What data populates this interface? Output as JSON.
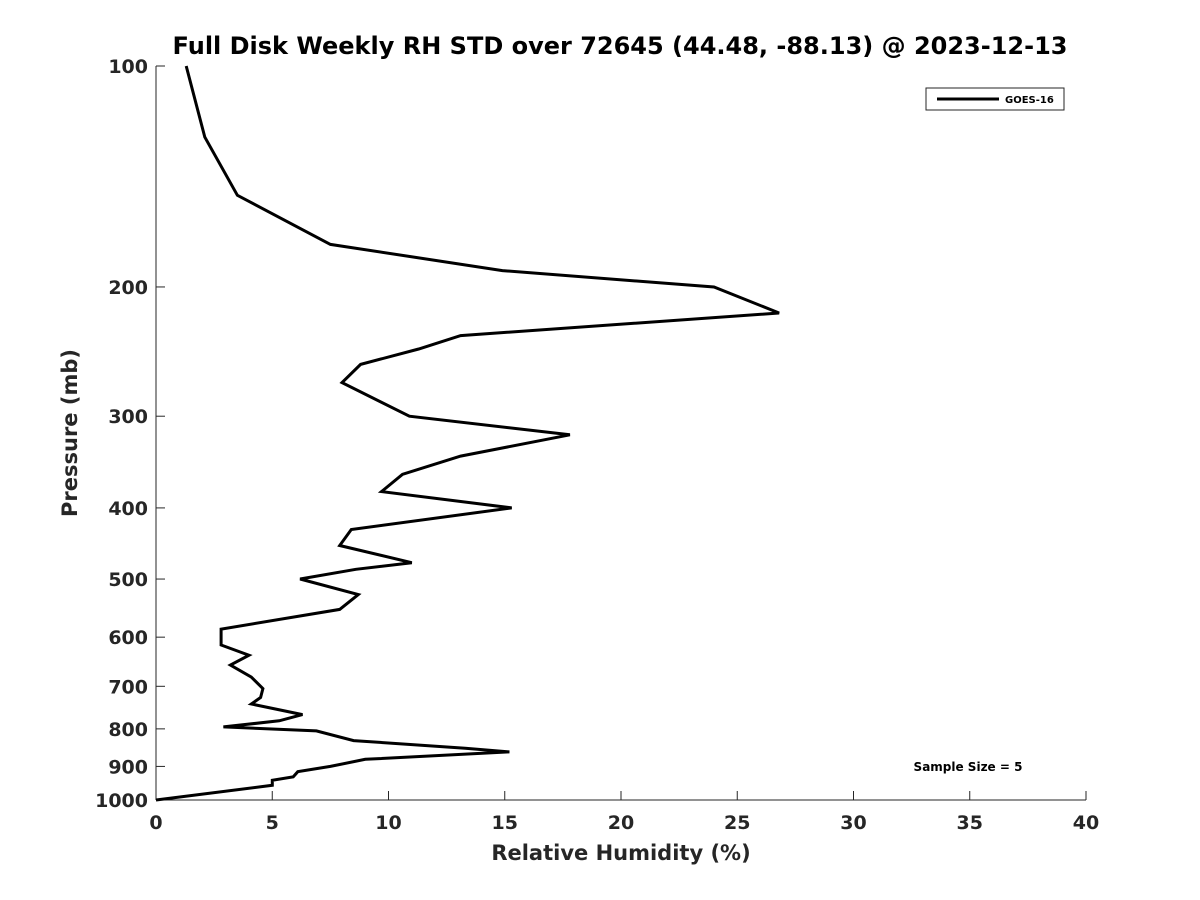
{
  "chart_data": {
    "type": "line",
    "title": "Full Disk Weekly RH STD over 72645 (44.48, -88.13) @ 2023-12-13",
    "xlabel": "Relative Humidity (%)",
    "ylabel": "Pressure (mb)",
    "xlim": [
      0,
      40
    ],
    "ylim": [
      100,
      1000
    ],
    "yscale": "log",
    "y_reversed": true,
    "x_ticks": [
      0,
      5,
      10,
      15,
      20,
      25,
      30,
      35,
      40
    ],
    "y_ticks": [
      100,
      200,
      300,
      400,
      500,
      600,
      700,
      800,
      900,
      1000
    ],
    "grid": false,
    "legend_position": "top-right",
    "series": [
      {
        "name": "GOES-16",
        "color": "#000000",
        "points": [
          [
            1.3,
            100
          ],
          [
            2.1,
            125
          ],
          [
            3.5,
            150
          ],
          [
            7.5,
            175
          ],
          [
            14.9,
            190
          ],
          [
            24.0,
            200
          ],
          [
            26.8,
            217
          ],
          [
            13.1,
            233
          ],
          [
            11.3,
            243
          ],
          [
            8.8,
            255
          ],
          [
            8.0,
            270
          ],
          [
            10.9,
            300
          ],
          [
            17.8,
            318
          ],
          [
            13.1,
            340
          ],
          [
            10.6,
            360
          ],
          [
            9.7,
            380
          ],
          [
            15.3,
            400
          ],
          [
            8.4,
            428
          ],
          [
            7.9,
            450
          ],
          [
            11.0,
            475
          ],
          [
            8.6,
            485
          ],
          [
            6.2,
            500
          ],
          [
            8.7,
            525
          ],
          [
            7.9,
            550
          ],
          [
            2.8,
            585
          ],
          [
            2.8,
            615
          ],
          [
            4.0,
            635
          ],
          [
            3.2,
            655
          ],
          [
            4.1,
            680
          ],
          [
            4.6,
            705
          ],
          [
            4.5,
            725
          ],
          [
            4.1,
            740
          ],
          [
            6.3,
            765
          ],
          [
            5.3,
            780
          ],
          [
            2.9,
            795
          ],
          [
            6.9,
            805
          ],
          [
            8.5,
            830
          ],
          [
            13.3,
            850
          ],
          [
            15.2,
            860
          ],
          [
            9.0,
            880
          ],
          [
            7.5,
            900
          ],
          [
            6.1,
            915
          ],
          [
            5.9,
            930
          ],
          [
            5.0,
            940
          ],
          [
            5.0,
            955
          ],
          [
            0.0,
            1000
          ]
        ]
      }
    ],
    "annotations": [
      "Sample Size = 5"
    ]
  }
}
